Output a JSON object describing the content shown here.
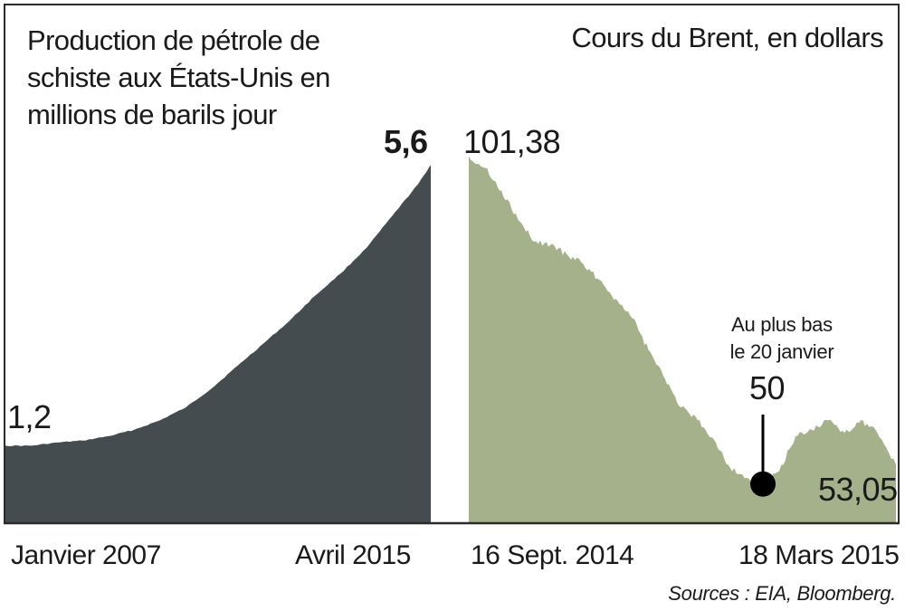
{
  "chart_data": [
    {
      "type": "area",
      "title": "Production de pétrole de schiste aux États-Unis en millions de barils jour",
      "x_labels": [
        "Janvier 2007",
        "Avril 2015"
      ],
      "x": [
        "2007-01",
        "2007-07",
        "2008-01",
        "2008-07",
        "2009-01",
        "2009-07",
        "2010-01",
        "2010-07",
        "2011-01",
        "2011-07",
        "2012-01",
        "2012-07",
        "2013-01",
        "2013-07",
        "2014-01",
        "2014-07",
        "2015-01",
        "2015-04"
      ],
      "values": [
        1.2,
        1.2,
        1.25,
        1.28,
        1.35,
        1.45,
        1.6,
        1.8,
        2.1,
        2.45,
        2.8,
        3.15,
        3.55,
        3.9,
        4.3,
        4.8,
        5.3,
        5.6
      ],
      "start_label": "1,2",
      "end_label": "5,6",
      "ylim": [
        0,
        6.2
      ],
      "color": "#444c50"
    },
    {
      "type": "area",
      "title": "Cours du Brent, en dollars",
      "x_labels": [
        "16 Sept. 2014",
        "18 Mars 2015"
      ],
      "x": [
        "2014-09-16",
        "2014-09-23",
        "2014-09-30",
        "2014-10-07",
        "2014-10-14",
        "2014-10-21",
        "2014-10-28",
        "2014-11-04",
        "2014-11-11",
        "2014-11-18",
        "2014-11-25",
        "2014-12-02",
        "2014-12-09",
        "2014-12-16",
        "2014-12-23",
        "2014-12-30",
        "2015-01-06",
        "2015-01-13",
        "2015-01-20",
        "2015-01-27",
        "2015-02-03",
        "2015-02-10",
        "2015-02-17",
        "2015-02-24",
        "2015-03-03",
        "2015-03-10",
        "2015-03-18"
      ],
      "values": [
        101.38,
        99.5,
        96.0,
        91.5,
        88.0,
        87.5,
        86.0,
        84.5,
        82.0,
        79.0,
        76.0,
        71.0,
        66.5,
        62.0,
        60.0,
        57.0,
        52.5,
        51.0,
        50.0,
        52.0,
        57.5,
        58.5,
        60.0,
        58.0,
        60.0,
        58.0,
        53.05
      ],
      "start_label": "101,38",
      "end_label": "53,05",
      "ylim": [
        44,
        106
      ],
      "color": "#a5b18b",
      "annotation": {
        "text_line1": "Au plus bas",
        "text_line2": "le 20 janvier",
        "value_label": "50",
        "x": "2015-01-20",
        "y": 50
      }
    }
  ],
  "source": "Sources : EIA, Bloomberg."
}
